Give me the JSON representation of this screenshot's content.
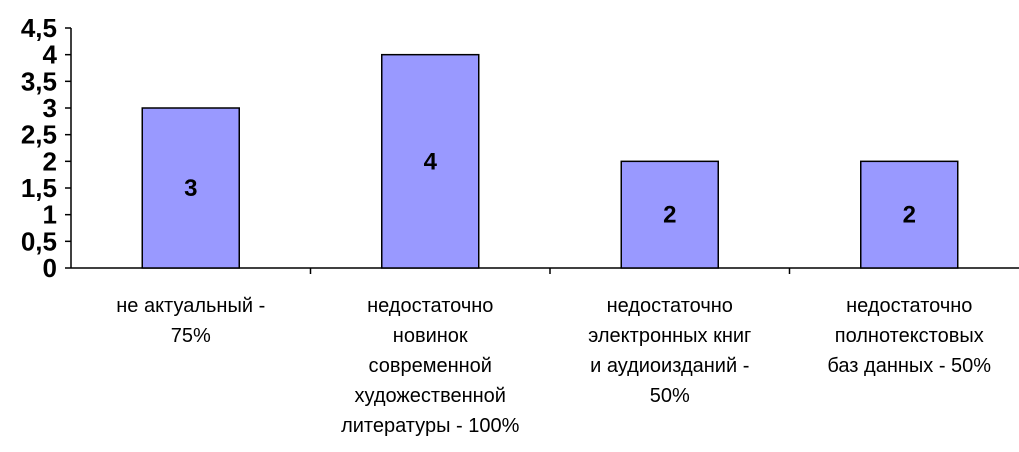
{
  "chart_data": {
    "type": "bar",
    "title": "",
    "xlabel": "",
    "ylabel": "",
    "ylim": [
      0,
      4.5
    ],
    "yticks": [
      "0",
      "0,5",
      "1",
      "1,5",
      "2",
      "2,5",
      "3",
      "3,5",
      "4",
      "4,5"
    ],
    "categories": [
      [
        "не актуальный -",
        "75%"
      ],
      [
        "недостаточно",
        "новинок",
        "современной",
        "художественной",
        "литературы - 100%"
      ],
      [
        "недостаточно",
        "электронных книг",
        "и аудиоизданий -",
        "50%"
      ],
      [
        "недостаточно",
        "полнотекстовых",
        "баз данных - 50%"
      ]
    ],
    "values": [
      3,
      4,
      2,
      2
    ],
    "data_labels": [
      "3",
      "4",
      "2",
      "2"
    ],
    "bar_color": "#9999ff",
    "grid": false,
    "legend": "none"
  }
}
